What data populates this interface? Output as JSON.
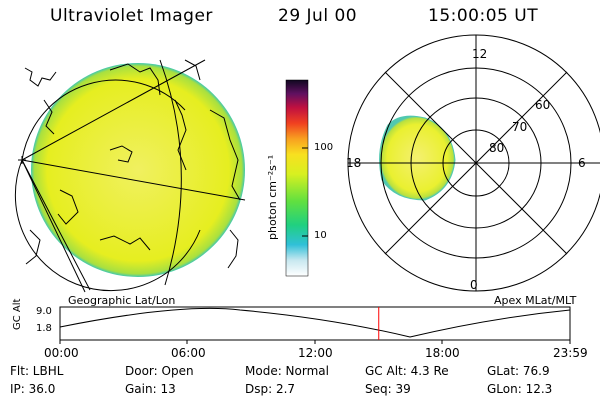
{
  "header": {
    "instrument": "Ultraviolet Imager",
    "date": "29 Jul 00",
    "time": "15:00:05 UT"
  },
  "geo_panel": {
    "label": "Geographic Lat/Lon"
  },
  "polar_panel": {
    "label": "Apex MLat/MLT",
    "mlt_labels": [
      "12",
      "18",
      "6",
      "0"
    ],
    "mlat_labels": [
      "60",
      "70",
      "80"
    ]
  },
  "colorbar": {
    "unit_text": "photon cm⁻²s⁻¹",
    "ticks": [
      "100",
      "10"
    ]
  },
  "timeline": {
    "ylabel": "GC Alt",
    "yticks": [
      "9.0",
      "1.8"
    ],
    "xticks": [
      "00:00",
      "06:00",
      "12:00",
      "18:00",
      "23:59"
    ],
    "current_time_fraction": 0.625
  },
  "status": {
    "flt": "Flt: LBHL",
    "door": "Door: Open",
    "mode": "Mode: Normal",
    "gcalt": "GC Alt: 4.3 Re",
    "glat": "GLat:  76.9",
    "ip": "IP: 36.0",
    "gain": "Gain: 13",
    "dsp": "Dsp:    2.7",
    "seq": "Seq: 39",
    "glon": "GLon:  12.3"
  },
  "colors": {
    "emission": "#e8f020",
    "emission_edge": "#40c8a0",
    "marker": "#ff0000"
  }
}
